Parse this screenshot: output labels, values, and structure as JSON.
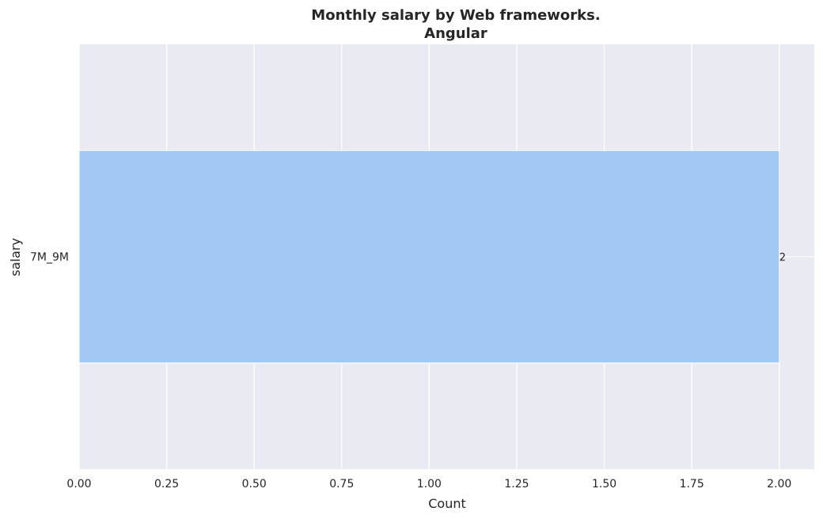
{
  "chart_data": {
    "type": "bar",
    "orientation": "horizontal",
    "title": "Monthly salary by Web frameworks.",
    "subtitle": "Angular",
    "categories": [
      "7M_9M"
    ],
    "values": [
      2
    ],
    "data_labels": [
      "2"
    ],
    "xlabel": "Count",
    "ylabel": "salary",
    "xlim": [
      0,
      2.1
    ],
    "xticks": [
      0,
      0.25,
      0.5,
      0.75,
      1.0,
      1.25,
      1.5,
      1.75,
      2.0
    ],
    "xtick_labels": [
      "0.00",
      "0.25",
      "0.50",
      "0.75",
      "1.00",
      "1.25",
      "1.50",
      "1.75",
      "2.00"
    ],
    "grid": true,
    "colors": {
      "bar": "#a1c9f4",
      "background": "#eaeaf2",
      "grid": "#ffffff",
      "text": "#262626"
    }
  }
}
